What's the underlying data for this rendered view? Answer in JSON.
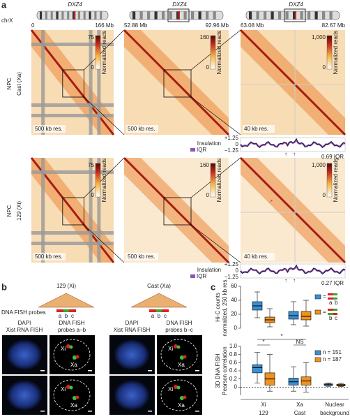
{
  "panel_a": {
    "label": "a",
    "chromosome": "chrX",
    "locus": "DXZ4",
    "ranges": [
      [
        "0",
        "166 Mb"
      ],
      [
        "52.88 Mb",
        "92.96 Mb"
      ],
      [
        "63.08 Mb",
        "82.67 Mb"
      ]
    ],
    "colorbar_label": "Normalized reads",
    "rows": [
      {
        "name": [
          "NPC",
          "Cast (Xa)"
        ],
        "scale_max": [
          "75",
          "160",
          "1,000"
        ],
        "scale_min": "0",
        "resolution": [
          "500 kb res.",
          "500 kb res.",
          "40 kb res."
        ],
        "insulation": {
          "label": "Insulation",
          "legend": "IQR",
          "ticks": [
            "+1.25",
            "0",
            "−1.25"
          ],
          "value": "0.69 IQR"
        }
      },
      {
        "name": [
          "NPC",
          "129 (Xi)"
        ],
        "scale_max": [
          "75",
          "160",
          "1,000"
        ],
        "scale_min": "0",
        "resolution": [
          "500 kb res.",
          "500 kb res.",
          "40 kb res."
        ],
        "insulation": {
          "label": "Insulation",
          "legend": "IQR",
          "ticks": [
            "+1.25",
            "0",
            "−1.25"
          ],
          "value": "0.27 IQR"
        }
      }
    ]
  },
  "panel_b": {
    "label": "b",
    "probe_title": "DNA FISH probes",
    "alleles": [
      "129 (Xi)",
      "Cast (Xa)"
    ],
    "probe_letters": [
      "a",
      "b",
      "c"
    ],
    "columns": [
      {
        "stain": "DAPI",
        "rna": "Xist RNA FISH",
        "fish": "DNA FISH",
        "probes": "probes a–b"
      },
      {
        "stain": "DAPI",
        "rna": "Xist RNA FISH",
        "fish": "DNA FISH",
        "probes": "probes b–c"
      }
    ],
    "spot_labels": [
      "Xi",
      "Xa"
    ]
  },
  "panel_c": {
    "label": "c",
    "legend_letters": [
      "a",
      "b",
      "b",
      "c"
    ]
  },
  "chart_data": [
    {
      "type": "box",
      "ylabel": [
        "Hi-C counts",
        "normalized, 250 kb res."
      ],
      "ylim": [
        0,
        60
      ],
      "yticks": [
        0,
        20,
        40,
        60
      ],
      "series": [
        {
          "color": "#3a8fd0",
          "values": [
            {
              "min": 15,
              "q1": 26,
              "median": 32,
              "q3": 38,
              "max": 52
            },
            {
              "min": 5,
              "q1": 13,
              "median": 18,
              "q3": 24,
              "max": 38
            }
          ]
        },
        {
          "color": "#f0921e",
          "values": [
            {
              "min": 2,
              "q1": 8,
              "median": 12,
              "q3": 16,
              "max": 28
            },
            {
              "min": 3,
              "q1": 12,
              "median": 17,
              "q3": 24,
              "max": 40
            }
          ]
        }
      ]
    },
    {
      "type": "box",
      "ylabel": [
        "3D DNA FISH",
        "Pearson correlation"
      ],
      "ylim": [
        -0.2,
        1.0
      ],
      "yticks": [
        0,
        0.2,
        0.4,
        0.6,
        0.8,
        {
          "value": 1.0,
          "label": "1.0"
        }
      ],
      "categories": [
        "Xi",
        "Xa",
        "Nuclear"
      ],
      "sublabels": [
        "129",
        "Cast",
        "background"
      ],
      "annotations": [
        "*",
        "*",
        "NS"
      ],
      "series": [
        {
          "name": "n = 151",
          "color": "#3a8fd0",
          "values": [
            {
              "min": 0.1,
              "q1": 0.35,
              "median": 0.48,
              "q3": 0.55,
              "max": 0.85
            },
            {
              "min": -0.1,
              "q1": 0.05,
              "median": 0.13,
              "q3": 0.22,
              "max": 0.5
            },
            {
              "min": 0.02,
              "q1": 0.04,
              "median": 0.06,
              "q3": 0.08,
              "max": 0.1
            }
          ]
        },
        {
          "name": "n = 187",
          "color": "#f0921e",
          "values": [
            {
              "min": -0.1,
              "q1": 0.05,
              "median": 0.2,
              "q3": 0.35,
              "max": 0.8
            },
            {
              "min": -0.12,
              "q1": 0.05,
              "median": 0.15,
              "q3": 0.25,
              "max": 0.6
            },
            {
              "min": 0.01,
              "q1": 0.03,
              "median": 0.05,
              "q3": 0.07,
              "max": 0.09
            }
          ]
        }
      ]
    }
  ]
}
